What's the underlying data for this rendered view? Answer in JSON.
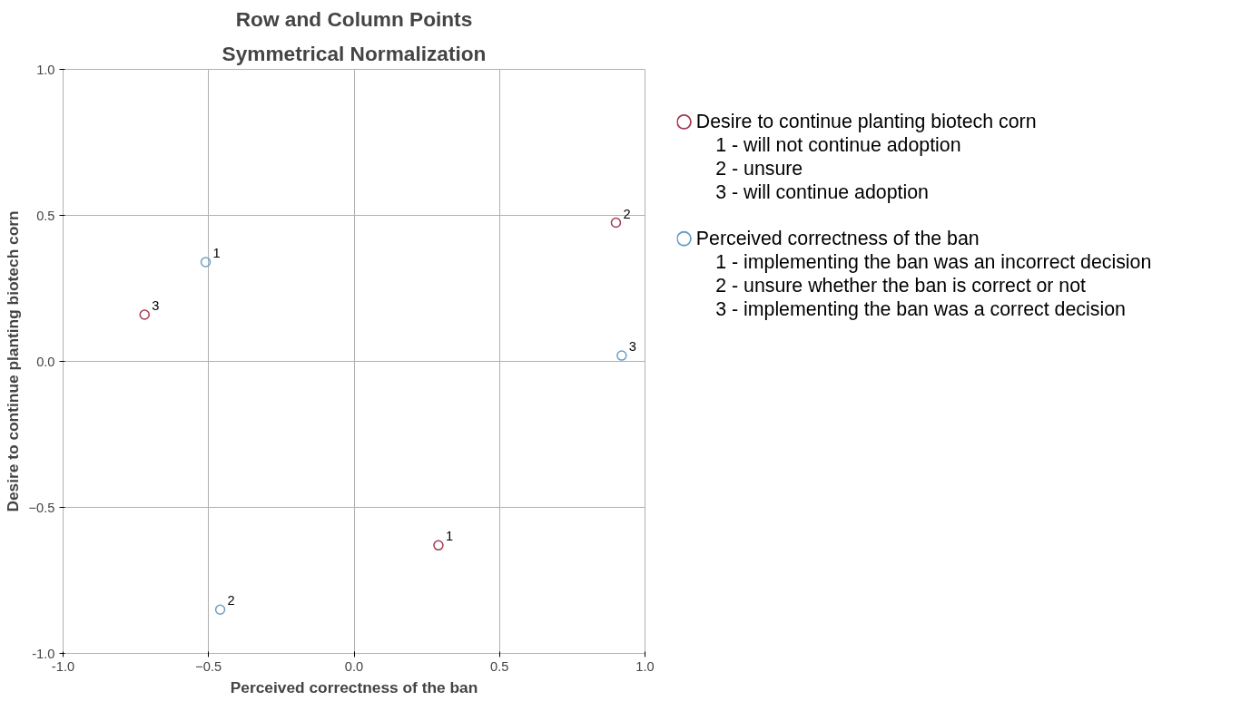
{
  "chart_data": {
    "type": "scatter",
    "title": "Row and Column Points",
    "subtitle": "Symmetrical Normalization",
    "xlabel": "Perceived correctness of the ban",
    "ylabel": "Desire to continue planting biotech corn",
    "series": [
      {
        "name": "Desire to continue planting biotech corn",
        "color": "#a33b53",
        "x": [
          0.29,
          0.9,
          -0.72
        ],
        "values": [
          -0.63,
          0.475,
          0.16
        ]
      },
      {
        "name": "Perceived correctness of the ban",
        "color": "#6a9fc8",
        "x": [
          -0.51,
          -0.46,
          0.92
        ],
        "values": [
          0.34,
          -0.85,
          0.02
        ]
      }
    ],
    "annotations": [
      "1 - will not continue adoption",
      "2 - unsure",
      "3 - will continue adoption",
      "1 - implementing the ban was an incorrect decision",
      "2 - unsure whether the ban is correct or not",
      "3 - implementing the ban was a correct decision",
      {
        "text": "1",
        "x": 0.29,
        "y": -0.63
      },
      {
        "text": "2",
        "x": 0.9,
        "y": 0.475
      },
      {
        "text": "3",
        "x": -0.72,
        "y": 0.16
      },
      {
        "text": "1",
        "x": -0.51,
        "y": 0.34
      },
      {
        "text": "2",
        "x": -0.46,
        "y": -0.85
      },
      {
        "text": "3",
        "x": 0.92,
        "y": 0.02
      }
    ],
    "xlim": [
      -1,
      1
    ],
    "ylim": [
      -1,
      1
    ],
    "xticks": [
      {
        "value": -1,
        "label": "-1.0"
      },
      -0.5,
      {
        "value": 0,
        "label": "0.0"
      },
      0.5,
      {
        "value": 1,
        "label": "1.0"
      }
    ],
    "yticks": [
      {
        "value": -1,
        "label": "-1.0"
      },
      -0.5,
      {
        "value": 0,
        "label": "0.0"
      },
      0.5,
      {
        "value": 1,
        "label": "1.0"
      }
    ],
    "grid": true,
    "marker": "circle",
    "legend": "right"
  }
}
